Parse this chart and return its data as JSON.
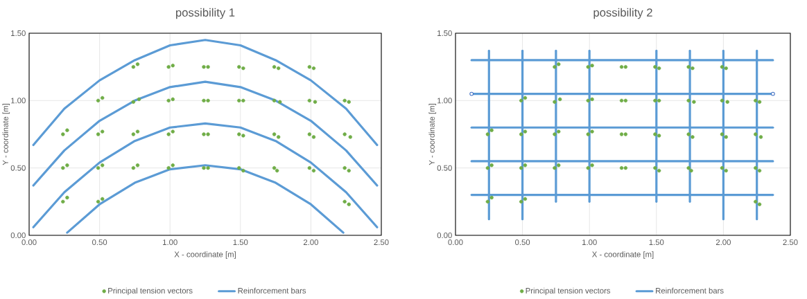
{
  "chart_data": [
    {
      "type": "scatter",
      "title": "possibility 1",
      "xlabel": "X - coordinate [m]",
      "ylabel": "Y - coordinate [m]",
      "xlim": [
        0,
        2.5
      ],
      "ylim": [
        0,
        1.5
      ],
      "xticks": [
        {
          "value": 0,
          "label": "0.00"
        },
        {
          "value": 0.5,
          "label": "0.50"
        },
        {
          "value": 1,
          "label": "1.00"
        },
        {
          "value": 1.5,
          "label": "1.50"
        },
        {
          "value": 2,
          "label": "2.00"
        },
        {
          "value": 2.5,
          "label": "2.50"
        }
      ],
      "yticks": [
        {
          "value": 0,
          "label": "0.00"
        },
        {
          "value": 0.5,
          "label": "0.50"
        },
        {
          "value": 1,
          "label": "1.00"
        },
        {
          "value": 1.5,
          "label": "1.50"
        }
      ],
      "grid": true,
      "legend": "bottom",
      "series": [
        {
          "name": "Principal tension vectors",
          "type": "scatter",
          "marker": "circle",
          "color": "#70ad47",
          "x": [
            0.74,
            0.77,
            0.99,
            1.02,
            1.24,
            1.27,
            1.49,
            1.52,
            1.74,
            1.77,
            1.99,
            2.02,
            0.49,
            0.52,
            0.74,
            0.78,
            0.99,
            1.02,
            1.24,
            1.27,
            1.49,
            1.52,
            1.74,
            1.78,
            1.99,
            2.03,
            2.24,
            2.27,
            0.24,
            0.27,
            0.49,
            0.52,
            0.74,
            0.77,
            0.99,
            1.02,
            1.24,
            1.27,
            1.49,
            1.52,
            1.74,
            1.77,
            1.99,
            2.02,
            2.24,
            2.28,
            0.24,
            0.27,
            0.49,
            0.52,
            0.74,
            0.77,
            0.99,
            1.02,
            1.24,
            1.27,
            1.49,
            1.52,
            1.74,
            1.76,
            1.99,
            2.02,
            2.24,
            2.27,
            0.24,
            0.27,
            0.49,
            0.52,
            2.24,
            2.27
          ],
          "values": [
            1.25,
            1.27,
            1.25,
            1.26,
            1.25,
            1.25,
            1.25,
            1.24,
            1.25,
            1.24,
            1.25,
            1.24,
            1.0,
            1.02,
            0.99,
            1.01,
            1.0,
            1.01,
            1.0,
            1.0,
            1.0,
            1.0,
            1.0,
            0.99,
            1.0,
            0.99,
            1.0,
            0.99,
            0.75,
            0.78,
            0.75,
            0.77,
            0.75,
            0.77,
            0.75,
            0.77,
            0.75,
            0.75,
            0.75,
            0.74,
            0.75,
            0.73,
            0.75,
            0.73,
            0.75,
            0.73,
            0.5,
            0.52,
            0.5,
            0.52,
            0.5,
            0.52,
            0.5,
            0.52,
            0.5,
            0.5,
            0.5,
            0.48,
            0.5,
            0.48,
            0.5,
            0.48,
            0.5,
            0.48,
            0.25,
            0.28,
            0.25,
            0.27,
            0.25,
            0.23
          ]
        },
        {
          "name": "Reinforcement bars",
          "type": "line",
          "marker": "none",
          "color": "#5b9bd5",
          "x": [
            0.03,
            0.25,
            0.5,
            0.75,
            1.0,
            1.25,
            1.5,
            1.75,
            2.0,
            2.25,
            2.47,
            null,
            0.03,
            0.25,
            0.5,
            0.75,
            1.0,
            1.25,
            1.5,
            1.75,
            2.0,
            2.25,
            2.47,
            null,
            0.03,
            0.25,
            0.5,
            0.75,
            1.0,
            1.25,
            1.5,
            1.75,
            2.0,
            2.25,
            2.47,
            null,
            0.27,
            0.5,
            0.75,
            1.0,
            1.25,
            1.5,
            1.75,
            2.0,
            2.23
          ],
          "values": [
            0.67,
            0.94,
            1.15,
            1.3,
            1.41,
            1.45,
            1.41,
            1.3,
            1.15,
            0.94,
            0.67,
            null,
            0.37,
            0.63,
            0.85,
            1.0,
            1.1,
            1.14,
            1.1,
            1.0,
            0.85,
            0.63,
            0.37,
            null,
            0.06,
            0.32,
            0.54,
            0.7,
            0.8,
            0.83,
            0.8,
            0.7,
            0.54,
            0.32,
            0.06,
            null,
            0.02,
            0.23,
            0.39,
            0.49,
            0.52,
            0.49,
            0.39,
            0.23,
            0.02
          ]
        }
      ]
    },
    {
      "type": "scatter",
      "title": "possibility 2",
      "xlabel": "X - coordinate [m]",
      "ylabel": "Y - coordinate [m]",
      "xlim": [
        0,
        2.5
      ],
      "ylim": [
        0,
        1.5
      ],
      "xticks": [
        {
          "value": 0,
          "label": "0.00"
        },
        {
          "value": 0.5,
          "label": "0.50"
        },
        {
          "value": 1,
          "label": "1.00"
        },
        {
          "value": 1.5,
          "label": "1.50"
        },
        {
          "value": 2,
          "label": "2.00"
        },
        {
          "value": 2.5,
          "label": "2.50"
        }
      ],
      "yticks": [
        {
          "value": 0,
          "label": "0.00"
        },
        {
          "value": 0.5,
          "label": "0.50"
        },
        {
          "value": 1,
          "label": "1.00"
        },
        {
          "value": 1.5,
          "label": "1.50"
        }
      ],
      "grid": true,
      "legend": "bottom",
      "series": [
        {
          "name": "Principal tension vectors",
          "type": "scatter",
          "marker": "circle",
          "color": "#70ad47",
          "x": [
            0.74,
            0.77,
            0.99,
            1.02,
            1.24,
            1.27,
            1.49,
            1.52,
            1.74,
            1.77,
            1.99,
            2.02,
            0.49,
            0.52,
            0.74,
            0.78,
            0.99,
            1.02,
            1.24,
            1.27,
            1.49,
            1.52,
            1.74,
            1.78,
            1.99,
            2.03,
            2.24,
            2.27,
            0.24,
            0.27,
            0.49,
            0.52,
            0.74,
            0.77,
            0.99,
            1.02,
            1.24,
            1.27,
            1.49,
            1.52,
            1.74,
            1.77,
            1.99,
            2.02,
            2.24,
            2.28,
            0.24,
            0.27,
            0.49,
            0.52,
            0.74,
            0.77,
            0.99,
            1.02,
            1.24,
            1.27,
            1.49,
            1.52,
            1.74,
            1.76,
            1.99,
            2.02,
            2.24,
            2.27,
            0.24,
            0.27,
            0.49,
            0.52,
            2.24,
            2.27
          ],
          "values": [
            1.25,
            1.27,
            1.25,
            1.26,
            1.25,
            1.25,
            1.25,
            1.24,
            1.25,
            1.24,
            1.25,
            1.24,
            1.0,
            1.02,
            0.99,
            1.01,
            1.0,
            1.01,
            1.0,
            1.0,
            1.0,
            1.0,
            1.0,
            0.99,
            1.0,
            0.99,
            1.0,
            0.99,
            0.75,
            0.78,
            0.75,
            0.77,
            0.75,
            0.77,
            0.75,
            0.77,
            0.75,
            0.75,
            0.75,
            0.74,
            0.75,
            0.73,
            0.75,
            0.73,
            0.75,
            0.73,
            0.5,
            0.52,
            0.5,
            0.52,
            0.5,
            0.52,
            0.5,
            0.52,
            0.5,
            0.5,
            0.5,
            0.48,
            0.5,
            0.48,
            0.5,
            0.48,
            0.5,
            0.48,
            0.25,
            0.28,
            0.25,
            0.27,
            0.25,
            0.23
          ]
        },
        {
          "name": "Reinforcement bars",
          "type": "line",
          "marker": "none",
          "color": "#5b9bd5",
          "x": [
            0.12,
            2.37
          ],
          "values": [
            1.3,
            1.3
          ]
        },
        {
          "type": "line",
          "marker": "none",
          "color": "#5b9bd5",
          "x": [
            0.12,
            2.37
          ],
          "values": [
            1.05,
            1.05
          ]
        },
        {
          "type": "line",
          "marker": "none",
          "color": "#5b9bd5",
          "x": [
            0.12,
            2.37
          ],
          "values": [
            0.8,
            0.8
          ]
        },
        {
          "type": "line",
          "marker": "none",
          "color": "#5b9bd5",
          "x": [
            0.12,
            2.37
          ],
          "values": [
            0.55,
            0.55
          ]
        },
        {
          "type": "line",
          "marker": "none",
          "color": "#5b9bd5",
          "x": [
            0.12,
            2.37
          ],
          "values": [
            0.3,
            0.3
          ]
        },
        {
          "type": "line",
          "marker": "none",
          "color": "#5b9bd5",
          "x": [
            0.25,
            0.25
          ],
          "values": [
            1.37,
            0.12
          ]
        },
        {
          "type": "line",
          "marker": "none",
          "color": "#5b9bd5",
          "x": [
            0.5,
            0.5
          ],
          "values": [
            1.37,
            0.12
          ]
        },
        {
          "type": "line",
          "marker": "none",
          "color": "#5b9bd5",
          "x": [
            0.75,
            0.75
          ],
          "values": [
            1.37,
            0.25
          ]
        },
        {
          "type": "line",
          "marker": "none",
          "color": "#5b9bd5",
          "x": [
            1.0,
            1.0
          ],
          "values": [
            1.37,
            0.25
          ]
        },
        {
          "type": "line",
          "marker": "none",
          "color": "#5b9bd5",
          "x": [
            1.5,
            1.5
          ],
          "values": [
            1.37,
            0.25
          ]
        },
        {
          "type": "line",
          "marker": "none",
          "color": "#5b9bd5",
          "x": [
            1.75,
            1.75
          ],
          "values": [
            1.37,
            0.25
          ]
        },
        {
          "type": "line",
          "marker": "none",
          "color": "#5b9bd5",
          "x": [
            2.0,
            2.0
          ],
          "values": [
            1.37,
            0.12
          ]
        },
        {
          "type": "line",
          "marker": "none",
          "color": "#5b9bd5",
          "x": [
            2.25,
            2.25
          ],
          "values": [
            1.37,
            0.12
          ]
        },
        {
          "marker": "circle",
          "color": "#4472c4",
          "x": [
            0.12,
            2.37
          ],
          "values": [
            1.05,
            1.05
          ]
        }
      ]
    }
  ]
}
